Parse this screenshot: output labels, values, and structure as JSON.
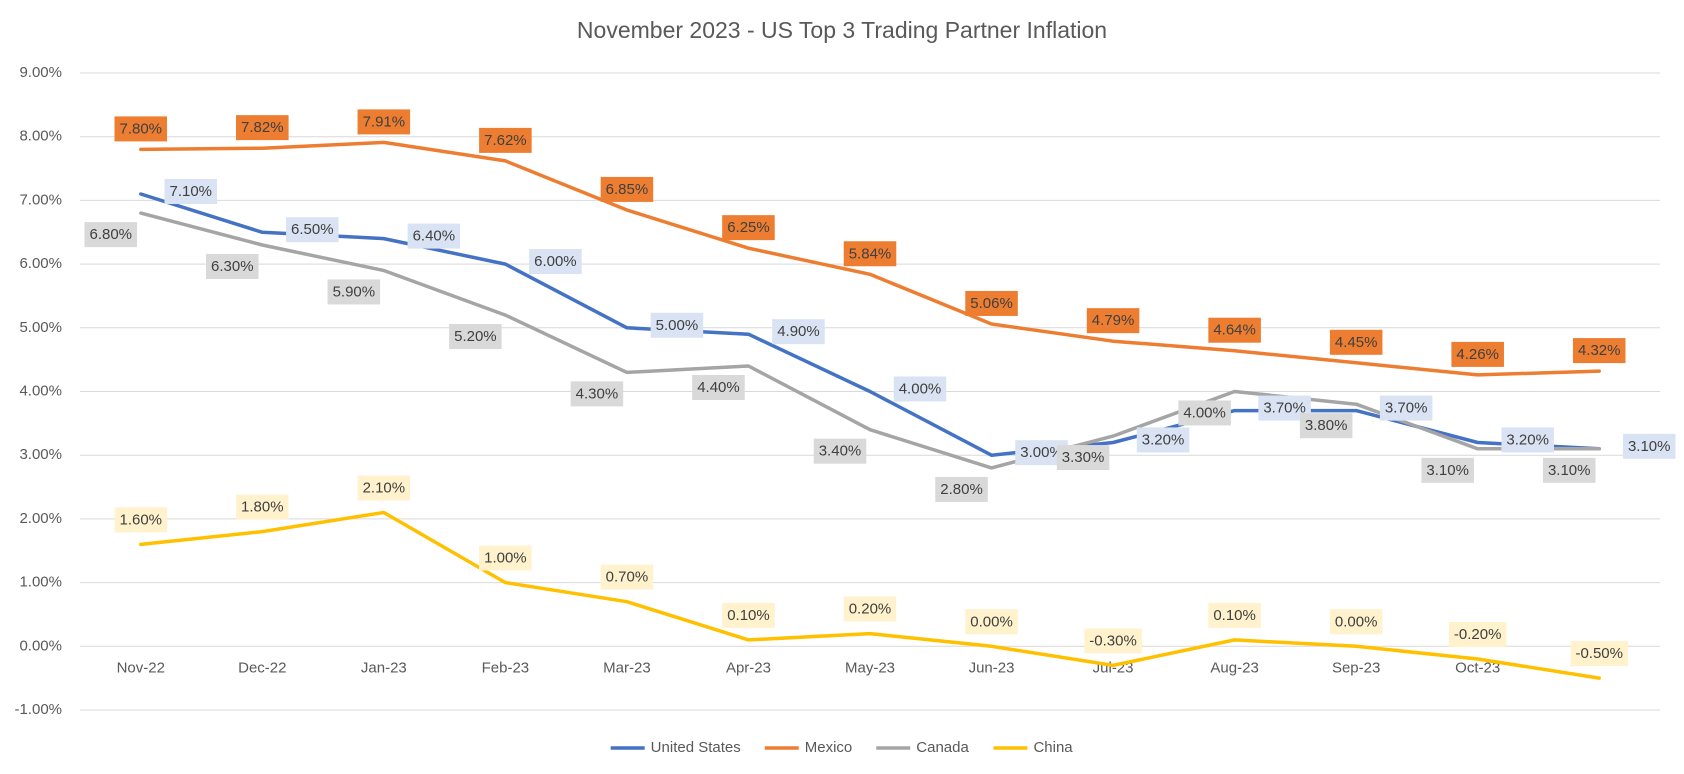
{
  "chart_data": {
    "type": "line",
    "title": "November 2023 - US Top 3 Trading Partner Inflation",
    "categories": [
      "Nov-22",
      "Dec-22",
      "Jan-23",
      "Feb-23",
      "Mar-23",
      "Apr-23",
      "May-23",
      "Jun-23",
      "Jul-23",
      "Aug-23",
      "Sep-23",
      "Oct-23",
      null
    ],
    "series": [
      {
        "name": "United States",
        "color": "#4472c4",
        "label_bg": "#dae3f3",
        "values": [
          7.1,
          6.5,
          6.4,
          6.0,
          5.0,
          4.9,
          4.0,
          3.0,
          3.2,
          3.7,
          3.7,
          3.2,
          3.1
        ],
        "value_labels": [
          "7.10%",
          "6.50%",
          "6.40%",
          "6.00%",
          "5.00%",
          "4.90%",
          "4.00%",
          "3.00%",
          "3.20%",
          "3.70%",
          "3.70%",
          "3.20%",
          "3.10%"
        ]
      },
      {
        "name": "Mexico",
        "color": "#ed7d31",
        "label_bg": "#ed7d31",
        "values": [
          7.8,
          7.82,
          7.91,
          7.62,
          6.85,
          6.25,
          5.84,
          5.06,
          4.79,
          4.64,
          4.45,
          4.26,
          4.32
        ],
        "value_labels": [
          "7.80%",
          "7.82%",
          "7.91%",
          "7.62%",
          "6.85%",
          "6.25%",
          "5.84%",
          "5.06%",
          "4.79%",
          "4.64%",
          "4.45%",
          "4.26%",
          "4.32%"
        ]
      },
      {
        "name": "Canada",
        "color": "#a5a5a5",
        "label_bg": "#d9d9d9",
        "values": [
          6.8,
          6.3,
          5.9,
          5.2,
          4.3,
          4.4,
          3.4,
          2.8,
          3.3,
          4.0,
          3.8,
          3.1,
          3.1
        ],
        "value_labels": [
          "6.80%",
          "6.30%",
          "5.90%",
          "5.20%",
          "4.30%",
          "4.40%",
          "3.40%",
          "2.80%",
          "3.30%",
          "4.00%",
          "3.80%",
          "3.10%",
          "3.10%"
        ]
      },
      {
        "name": "China",
        "color": "#ffc000",
        "label_bg": "#fff2cc",
        "values": [
          1.6,
          1.8,
          2.1,
          1.0,
          0.7,
          0.1,
          0.2,
          0.0,
          -0.3,
          0.1,
          0.0,
          -0.2,
          -0.5
        ],
        "value_labels": [
          "1.60%",
          "1.80%",
          "2.10%",
          "1.00%",
          "0.70%",
          "0.10%",
          "0.20%",
          "0.00%",
          "-0.30%",
          "0.10%",
          "0.00%",
          "-0.20%",
          "-0.50%"
        ]
      }
    ],
    "ylim": [
      -1,
      9
    ],
    "yticks": [
      {
        "value": -1,
        "label": "-1.00%"
      },
      {
        "value": 0,
        "label": "0.00%"
      },
      {
        "value": 1,
        "label": "1.00%"
      },
      {
        "value": 2,
        "label": "2.00%"
      },
      {
        "value": 3,
        "label": "3.00%"
      },
      {
        "value": 4,
        "label": "4.00%"
      },
      {
        "value": 5,
        "label": "5.00%"
      },
      {
        "value": 6,
        "label": "6.00%"
      },
      {
        "value": 7,
        "label": "7.00%"
      },
      {
        "value": 8,
        "label": "8.00%"
      },
      {
        "value": 9,
        "label": "9.00%"
      }
    ],
    "grid": true,
    "legend": "bottom"
  }
}
